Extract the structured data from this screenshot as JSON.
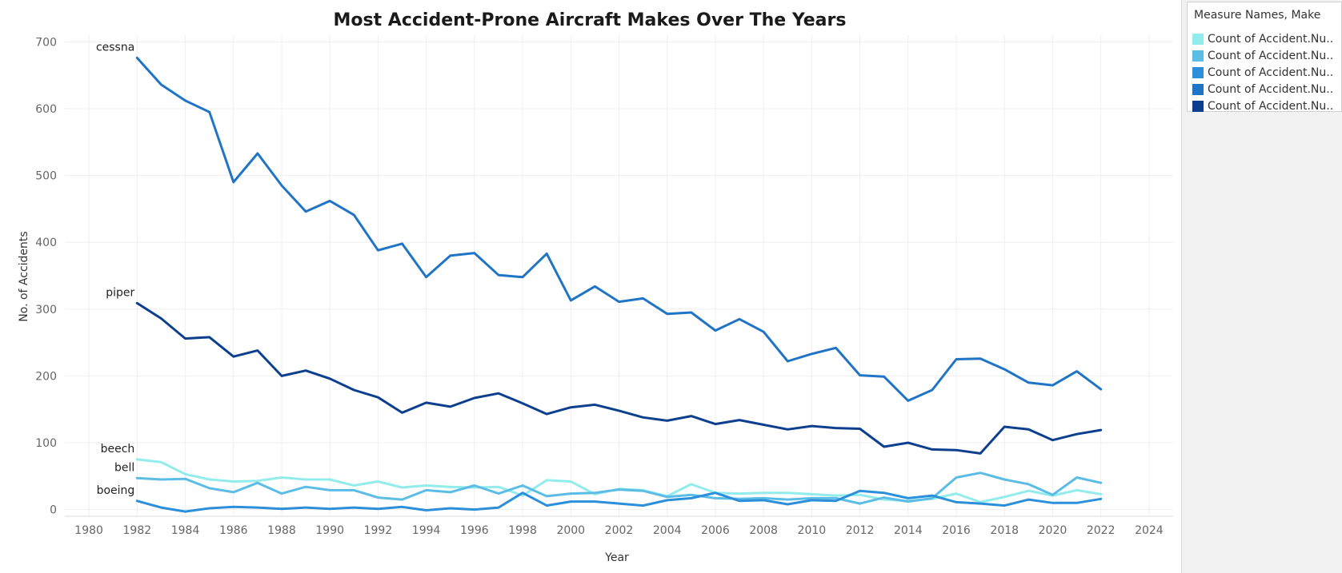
{
  "chart_data": {
    "type": "line",
    "title": "Most Accident-Prone Aircraft Makes Over  The Years",
    "xlabel": "Year",
    "ylabel": "No. of Accidents",
    "xlim": [
      1979,
      2025
    ],
    "ylim": [
      -10,
      710
    ],
    "x_ticks": [
      "1980",
      "1982",
      "1984",
      "1986",
      "1988",
      "1990",
      "1992",
      "1994",
      "1996",
      "1998",
      "2000",
      "2002",
      "2004",
      "2006",
      "2008",
      "2010",
      "2012",
      "2014",
      "2016",
      "2018",
      "2020",
      "2022",
      "2024"
    ],
    "y_ticks": [
      "0",
      "100",
      "200",
      "300",
      "400",
      "500",
      "600",
      "700"
    ],
    "grid": true,
    "legend_position": "right",
    "x": [
      1982,
      1983,
      1984,
      1985,
      1986,
      1987,
      1988,
      1989,
      1990,
      1991,
      1992,
      1993,
      1994,
      1995,
      1996,
      1997,
      1998,
      1999,
      2000,
      2001,
      2002,
      2003,
      2004,
      2005,
      2006,
      2007,
      2008,
      2009,
      2010,
      2011,
      2012,
      2013,
      2014,
      2015,
      2016,
      2017,
      2018,
      2019,
      2020,
      2021,
      2022
    ],
    "series": [
      {
        "label": "cessna",
        "color": "#1f74c5",
        "values": [
          676,
          636,
          612,
          595,
          490,
          533,
          485,
          446,
          462,
          441,
          388,
          398,
          348,
          380,
          384,
          351,
          348,
          383,
          313,
          334,
          311,
          316,
          293,
          295,
          268,
          285,
          266,
          222,
          233,
          242,
          201,
          199,
          163,
          179,
          225,
          226,
          210,
          190,
          186,
          207,
          180
        ]
      },
      {
        "label": "piper",
        "color": "#0d3f8f",
        "values": [
          309,
          286,
          256,
          258,
          229,
          238,
          200,
          208,
          196,
          179,
          168,
          145,
          160,
          154,
          167,
          174,
          159,
          143,
          153,
          157,
          148,
          138,
          133,
          140,
          128,
          134,
          127,
          120,
          125,
          122,
          121,
          94,
          100,
          90,
          89,
          84,
          124,
          120,
          104,
          113,
          119
        ]
      },
      {
        "label": "beech",
        "color": "#93ecec",
        "values": [
          75,
          71,
          53,
          45,
          42,
          43,
          48,
          45,
          45,
          36,
          42,
          33,
          36,
          34,
          33,
          34,
          21,
          44,
          42,
          23,
          31,
          29,
          20,
          38,
          25,
          24,
          25,
          25,
          23,
          21,
          22,
          15,
          13,
          16,
          24,
          11,
          19,
          28,
          21,
          29,
          23
        ]
      },
      {
        "label": "bell",
        "color": "#5bbde6",
        "values": [
          47,
          45,
          46,
          32,
          26,
          40,
          24,
          34,
          29,
          29,
          18,
          15,
          29,
          26,
          36,
          24,
          36,
          20,
          24,
          25,
          30,
          28,
          19,
          22,
          17,
          16,
          17,
          15,
          17,
          17,
          9,
          18,
          12,
          17,
          48,
          55,
          45,
          38,
          22,
          48,
          40
        ]
      },
      {
        "label": "boeing",
        "color": "#2b8fd9",
        "values": [
          13,
          3,
          -3,
          2,
          4,
          3,
          1,
          3,
          1,
          3,
          1,
          4,
          -1,
          2,
          0,
          3,
          25,
          6,
          12,
          12,
          9,
          6,
          14,
          17,
          25,
          13,
          14,
          8,
          14,
          13,
          28,
          25,
          17,
          21,
          11,
          9,
          6,
          15,
          10,
          10,
          16
        ]
      }
    ]
  },
  "legend": {
    "title": "Measure Names, Make",
    "items": [
      {
        "label": "Count of Accident.Nu..",
        "color": "#93ecec"
      },
      {
        "label": "Count of Accident.Nu..",
        "color": "#5bbde6"
      },
      {
        "label": "Count of Accident.Nu..",
        "color": "#2b8fd9"
      },
      {
        "label": "Count of Accident.Nu..",
        "color": "#1f74c5"
      },
      {
        "label": "Count of Accident.Nu..",
        "color": "#0d3f8f"
      }
    ]
  }
}
